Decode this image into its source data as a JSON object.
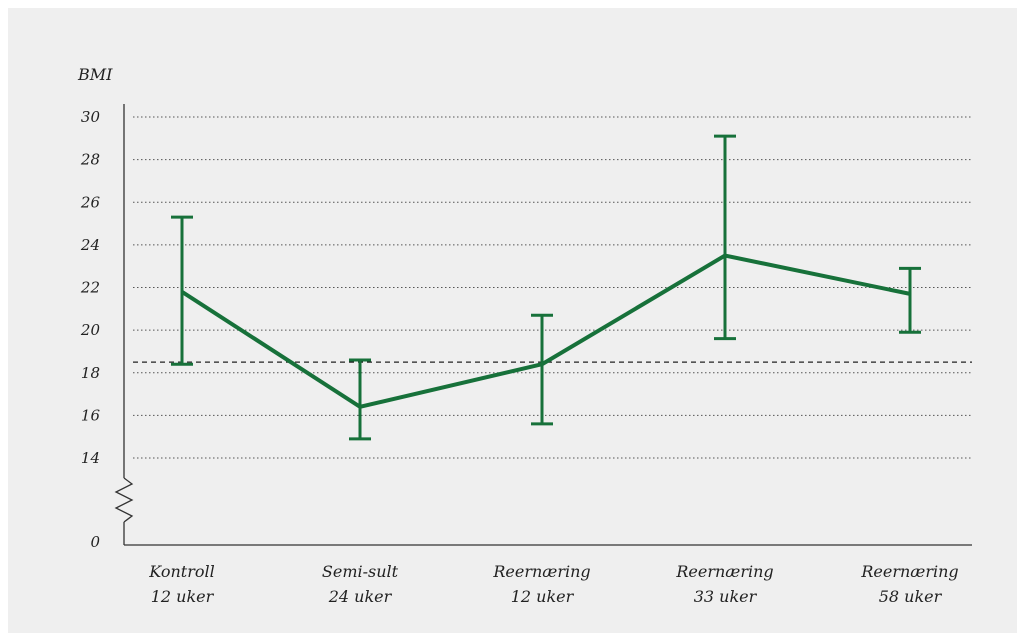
{
  "chart_data": {
    "type": "line",
    "ylabel": "BMI",
    "y_ticks": [
      "30",
      "28",
      "26",
      "24",
      "22",
      "20",
      "18",
      "16",
      "14"
    ],
    "y_zero_label": "0",
    "y_axis_break": true,
    "ylim": [
      14,
      30
    ],
    "grid": "horizontal-dotted",
    "reference_line": 18.5,
    "categories": [
      {
        "line1": "Kontroll",
        "line2": "12 uker"
      },
      {
        "line1": "Semi-sult",
        "line2": "24 uker"
      },
      {
        "line1": "Reernæring",
        "line2": "12 uker"
      },
      {
        "line1": "Reernæring",
        "line2": "33 uker"
      },
      {
        "line1": "Reernæring",
        "line2": "58 uker"
      }
    ],
    "series": [
      {
        "values": [
          21.8,
          16.4,
          18.4,
          23.5,
          21.7
        ],
        "error_low": [
          18.4,
          14.9,
          15.6,
          19.6,
          19.9
        ],
        "error_high": [
          25.3,
          18.6,
          20.7,
          29.1,
          22.9
        ]
      }
    ],
    "colors": {
      "series": "#17713a",
      "grid": "#555555",
      "axis": "#333333"
    }
  }
}
